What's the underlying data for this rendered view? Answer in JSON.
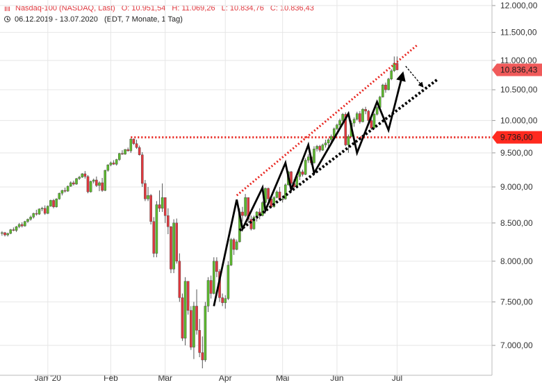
{
  "header": {
    "instrument": "Nasdaq-100 (NASDAQ, Last)",
    "open": "O: 10.951,54",
    "high": "H: 11.069,26",
    "low": "L: 10.834,76",
    "close": "C: 10.836,43",
    "range": "06.12.2019 - 13.07.2020",
    "info": "(EDT, 7 Monate, 1 Tag)"
  },
  "colors": {
    "up": "#5cb82e",
    "down": "#e0383e",
    "grid": "#e6e6e6",
    "axis_text": "#333333",
    "marker_bg": "#f05a5a",
    "level_line": "#e8251f"
  },
  "chart_data": {
    "type": "candlestick",
    "title": "Nasdaq-100 (NASDAQ, Last)",
    "y_axis_side": "right",
    "ylim": [
      6700,
      12100
    ],
    "y_ticks": [
      "12.000,00",
      "11.500,00",
      "11.000,00",
      "10.500,00",
      "10.000,00",
      "9.500,00",
      "9.000,00",
      "8.500,00",
      "8.000,00",
      "7.500,00",
      "7.000,00"
    ],
    "y_tick_values": [
      12000,
      11500,
      11000,
      10500,
      10000,
      9500,
      9000,
      8500,
      8000,
      7500,
      7000
    ],
    "x_ticks": [
      {
        "label": "Jan '20",
        "day": 16
      },
      {
        "label": "Feb",
        "day": 38
      },
      {
        "label": "Mär",
        "day": 57
      },
      {
        "label": "Apr",
        "day": 78
      },
      {
        "label": "Mai",
        "day": 98
      },
      {
        "label": "Jun",
        "day": 117
      },
      {
        "label": "Jul",
        "day": 138
      }
    ],
    "grid": true,
    "candles": [
      [
        8360,
        8390,
        8330,
        8370
      ],
      [
        8370,
        8380,
        8320,
        8340
      ],
      [
        8340,
        8370,
        8320,
        8360
      ],
      [
        8360,
        8420,
        8350,
        8410
      ],
      [
        8410,
        8440,
        8390,
        8400
      ],
      [
        8400,
        8460,
        8380,
        8450
      ],
      [
        8450,
        8500,
        8430,
        8480
      ],
      [
        8480,
        8510,
        8440,
        8460
      ],
      [
        8460,
        8530,
        8450,
        8520
      ],
      [
        8520,
        8560,
        8500,
        8550
      ],
      [
        8550,
        8600,
        8530,
        8580
      ],
      [
        8580,
        8640,
        8560,
        8630
      ],
      [
        8630,
        8680,
        8600,
        8620
      ],
      [
        8620,
        8700,
        8610,
        8690
      ],
      [
        8690,
        8720,
        8660,
        8700
      ],
      [
        8700,
        8740,
        8610,
        8630
      ],
      [
        8630,
        8740,
        8620,
        8730
      ],
      [
        8730,
        8820,
        8720,
        8810
      ],
      [
        8810,
        8830,
        8700,
        8720
      ],
      [
        8720,
        8840,
        8710,
        8830
      ],
      [
        8830,
        8920,
        8820,
        8910
      ],
      [
        8910,
        8960,
        8880,
        8950
      ],
      [
        8950,
        8990,
        8920,
        8940
      ],
      [
        8940,
        9020,
        8930,
        9010
      ],
      [
        9010,
        9080,
        9000,
        9060
      ],
      [
        9060,
        9090,
        9020,
        9040
      ],
      [
        9040,
        9130,
        9030,
        9120
      ],
      [
        9120,
        9160,
        9100,
        9140
      ],
      [
        9140,
        9200,
        9130,
        9190
      ],
      [
        9190,
        9230,
        9120,
        9150
      ],
      [
        9150,
        9170,
        8910,
        8930
      ],
      [
        8930,
        9090,
        8920,
        9080
      ],
      [
        9080,
        9120,
        9050,
        9100
      ],
      [
        9100,
        9150,
        9000,
        9020
      ],
      [
        9020,
        9080,
        8940,
        9060
      ],
      [
        9060,
        9130,
        8930,
        8950
      ],
      [
        8950,
        9250,
        8940,
        9240
      ],
      [
        9240,
        9330,
        9220,
        9320
      ],
      [
        9320,
        9370,
        9300,
        9350
      ],
      [
        9350,
        9390,
        9320,
        9330
      ],
      [
        9330,
        9410,
        9310,
        9400
      ],
      [
        9400,
        9500,
        9380,
        9490
      ],
      [
        9490,
        9540,
        9470,
        9480
      ],
      [
        9480,
        9560,
        9470,
        9550
      ],
      [
        9550,
        9580,
        9520,
        9530
      ],
      [
        9530,
        9720,
        9500,
        9710
      ],
      [
        9710,
        9720,
        9620,
        9640
      ],
      [
        9640,
        9700,
        9560,
        9580
      ],
      [
        9580,
        9610,
        9460,
        9470
      ],
      [
        9470,
        9510,
        9000,
        9050
      ],
      [
        9050,
        9100,
        8800,
        8830
      ],
      [
        8830,
        9000,
        8800,
        8880
      ],
      [
        8880,
        8900,
        8480,
        8520
      ],
      [
        8520,
        8580,
        8050,
        8100
      ],
      [
        8100,
        8800,
        8050,
        8750
      ],
      [
        8750,
        8950,
        8650,
        8700
      ],
      [
        8700,
        9050,
        8650,
        8850
      ],
      [
        8850,
        8850,
        8500,
        8600
      ],
      [
        8600,
        8700,
        8350,
        8450
      ],
      [
        8450,
        8460,
        7850,
        7900
      ],
      [
        7900,
        8550,
        7850,
        8500
      ],
      [
        8500,
        8560,
        7970,
        8000
      ],
      [
        8000,
        8100,
        7500,
        7550
      ],
      [
        7550,
        7600,
        7050,
        7080
      ],
      [
        7080,
        7800,
        7000,
        7750
      ],
      [
        7750,
        7750,
        7350,
        7400
      ],
      [
        7400,
        7450,
        6950,
        6980
      ],
      [
        6980,
        7500,
        6850,
        7450
      ],
      [
        7450,
        7650,
        7120,
        7170
      ],
      [
        7170,
        7300,
        6870,
        6920
      ],
      [
        6920,
        7100,
        6750,
        6840
      ],
      [
        6840,
        7500,
        6820,
        7450
      ],
      [
        7450,
        7800,
        7380,
        7760
      ],
      [
        7760,
        7820,
        7540,
        7600
      ],
      [
        7600,
        8050,
        7590,
        8000
      ],
      [
        8000,
        8050,
        7800,
        7870
      ],
      [
        7870,
        7900,
        7500,
        7550
      ],
      [
        7550,
        7600,
        7450,
        7490
      ],
      [
        7490,
        7580,
        7420,
        7540
      ],
      [
        7540,
        8000,
        7520,
        7950
      ],
      [
        7950,
        8300,
        7940,
        8280
      ],
      [
        8280,
        8300,
        8080,
        8150
      ],
      [
        8150,
        8280,
        8140,
        8250
      ],
      [
        8250,
        8700,
        8240,
        8650
      ],
      [
        8650,
        8720,
        8520,
        8600
      ],
      [
        8600,
        8900,
        8580,
        8850
      ],
      [
        8850,
        8850,
        8500,
        8550
      ],
      [
        8550,
        8600,
        8400,
        8420
      ],
      [
        8420,
        8600,
        8410,
        8580
      ],
      [
        8580,
        8660,
        8520,
        8650
      ],
      [
        8650,
        8700,
        8550,
        8600
      ],
      [
        8600,
        8800,
        8590,
        8780
      ],
      [
        8780,
        8990,
        8770,
        8980
      ],
      [
        8980,
        8990,
        8800,
        8830
      ],
      [
        8830,
        8870,
        8700,
        8720
      ],
      [
        8720,
        8870,
        8710,
        8850
      ],
      [
        8850,
        8950,
        8840,
        8930
      ],
      [
        8930,
        9000,
        8800,
        8820
      ],
      [
        8820,
        8860,
        8780,
        8830
      ],
      [
        8830,
        9050,
        8820,
        9030
      ],
      [
        9030,
        9230,
        9020,
        9220
      ],
      [
        9220,
        9230,
        9000,
        9050
      ],
      [
        9050,
        9110,
        8970,
        9000
      ],
      [
        9000,
        9180,
        8990,
        9150
      ],
      [
        9150,
        9250,
        9100,
        9220
      ],
      [
        9220,
        9250,
        9150,
        9180
      ],
      [
        9180,
        9420,
        9170,
        9390
      ],
      [
        9390,
        9480,
        9350,
        9440
      ],
      [
        9440,
        9460,
        9320,
        9350
      ],
      [
        9350,
        9600,
        9340,
        9560
      ],
      [
        9560,
        9620,
        9520,
        9600
      ],
      [
        9600,
        9620,
        9510,
        9540
      ],
      [
        9540,
        9640,
        9530,
        9620
      ],
      [
        9620,
        9700,
        9580,
        9650
      ],
      [
        9650,
        9720,
        9600,
        9700
      ],
      [
        9700,
        9780,
        9660,
        9750
      ],
      [
        9750,
        9890,
        9740,
        9870
      ],
      [
        9870,
        9950,
        9850,
        9930
      ],
      [
        9930,
        10030,
        9900,
        10000
      ],
      [
        10000,
        10120,
        9980,
        10100
      ],
      [
        10100,
        10130,
        9600,
        9620
      ],
      [
        9620,
        9780,
        9500,
        9750
      ],
      [
        9750,
        10000,
        9740,
        9960
      ],
      [
        9960,
        10050,
        9900,
        10020
      ],
      [
        10020,
        10140,
        10000,
        10110
      ],
      [
        10110,
        10150,
        9950,
        9980
      ],
      [
        9980,
        10200,
        9970,
        10180
      ],
      [
        10180,
        10220,
        10100,
        10150
      ],
      [
        10150,
        10170,
        9950,
        10000
      ],
      [
        10000,
        10050,
        9850,
        9880
      ],
      [
        9880,
        10120,
        9870,
        10100
      ],
      [
        10100,
        10230,
        10080,
        10210
      ],
      [
        10210,
        10400,
        10200,
        10380
      ],
      [
        10380,
        10600,
        10370,
        10580
      ],
      [
        10580,
        10620,
        10450,
        10500
      ],
      [
        10500,
        10700,
        10490,
        10680
      ],
      [
        10680,
        10850,
        10660,
        10820
      ],
      [
        10820,
        11069,
        10800,
        10951
      ],
      [
        10951,
        11069,
        10834,
        10836
      ]
    ],
    "horizontal_level": 9736,
    "price_markers": [
      {
        "label": "10.836,43",
        "value": 10836.43
      },
      {
        "label": "9.736,00",
        "value": 9736
      }
    ],
    "annotations": {
      "upper_channel": [
        [
          82,
          8880
        ],
        [
          145,
          11270
        ]
      ],
      "lower_channel": [
        [
          83,
          8400
        ],
        [
          152,
          10670
        ]
      ],
      "zigzag": [
        [
          74,
          7450
        ],
        [
          82,
          8820
        ],
        [
          84,
          8420
        ],
        [
          91,
          8990
        ],
        [
          92,
          8670
        ],
        [
          99,
          9350
        ],
        [
          101,
          8960
        ],
        [
          107,
          9620
        ],
        [
          109,
          9200
        ],
        [
          121,
          10110
        ],
        [
          124,
          9500
        ],
        [
          131,
          10300
        ],
        [
          135,
          9850
        ],
        [
          140,
          10780
        ]
      ],
      "forecast_arrow": [
        [
          141,
          10900
        ],
        [
          147,
          10550
        ]
      ]
    }
  }
}
